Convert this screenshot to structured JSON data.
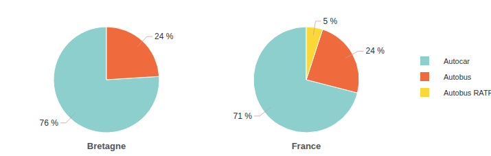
{
  "chart_data": [
    {
      "type": "pie",
      "title": "Bretagne",
      "categories": [
        "Autocar",
        "Autobus"
      ],
      "values": [
        76,
        24
      ],
      "value_labels": [
        "76 %",
        "24 %"
      ],
      "colors": [
        "#8ccfcc",
        "#ef6b3e"
      ],
      "data_labels": true
    },
    {
      "type": "pie",
      "title": "France",
      "categories": [
        "Autocar",
        "Autobus",
        "Autobus RATP"
      ],
      "values": [
        71,
        24,
        5
      ],
      "value_labels": [
        "71 %",
        "24 %",
        "5 %"
      ],
      "colors": [
        "#8ccfcc",
        "#ef6b3e",
        "#fcd837"
      ],
      "data_labels": true,
      "legend": "right"
    }
  ]
}
